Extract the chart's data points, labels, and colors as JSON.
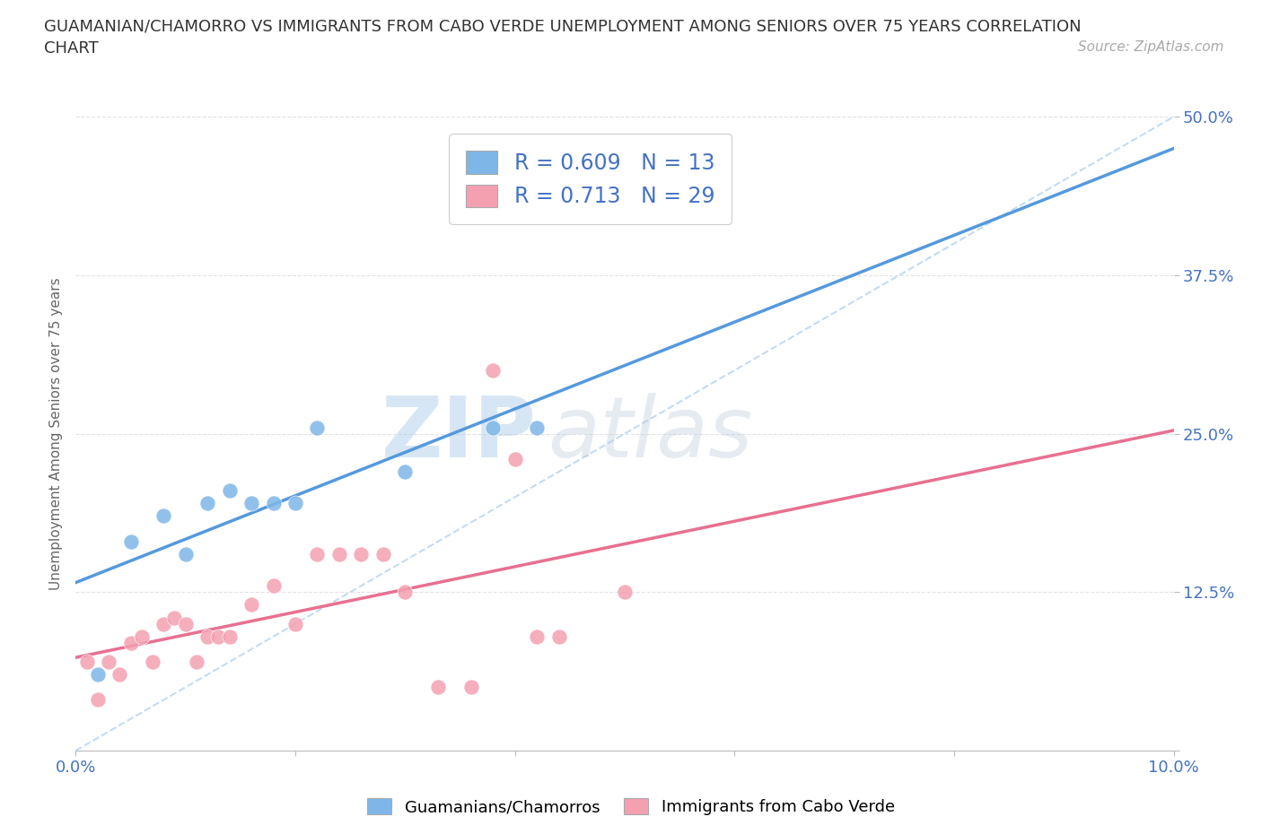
{
  "title_line1": "GUAMANIAN/CHAMORRO VS IMMIGRANTS FROM CABO VERDE UNEMPLOYMENT AMONG SENIORS OVER 75 YEARS CORRELATION",
  "title_line2": "CHART",
  "source": "Source: ZipAtlas.com",
  "ylabel_label": "Unemployment Among Seniors over 75 years",
  "xlim": [
    0.0,
    0.1
  ],
  "ylim": [
    0.0,
    0.5
  ],
  "yticks": [
    0.0,
    0.125,
    0.25,
    0.375,
    0.5
  ],
  "ytick_labels": [
    "",
    "12.5%",
    "25.0%",
    "37.5%",
    "50.0%"
  ],
  "xticks": [
    0.0,
    0.02,
    0.04,
    0.06,
    0.08,
    0.1
  ],
  "xtick_labels": [
    "0.0%",
    "",
    "",
    "",
    "",
    "10.0%"
  ],
  "blue_color": "#7EB6E8",
  "pink_color": "#F4A0B0",
  "blue_line_color": "#5599DD",
  "pink_line_color": "#E87090",
  "diag_color": "#AACCEE",
  "blue_R": 0.609,
  "blue_N": 13,
  "pink_R": 0.713,
  "pink_N": 29,
  "legend_label_blue": "Guamanians/Chamorros",
  "legend_label_pink": "Immigrants from Cabo Verde",
  "watermark_zip": "ZIP",
  "watermark_atlas": "atlas",
  "blue_points_x": [
    0.002,
    0.005,
    0.008,
    0.01,
    0.012,
    0.014,
    0.016,
    0.018,
    0.02,
    0.022,
    0.03,
    0.038,
    0.042
  ],
  "blue_points_y": [
    0.06,
    0.165,
    0.185,
    0.155,
    0.195,
    0.205,
    0.195,
    0.195,
    0.195,
    0.255,
    0.22,
    0.255,
    0.255
  ],
  "pink_points_x": [
    0.001,
    0.002,
    0.003,
    0.004,
    0.005,
    0.006,
    0.007,
    0.008,
    0.009,
    0.01,
    0.011,
    0.012,
    0.013,
    0.014,
    0.016,
    0.018,
    0.02,
    0.022,
    0.024,
    0.026,
    0.028,
    0.03,
    0.033,
    0.036,
    0.038,
    0.04,
    0.042,
    0.044,
    0.05
  ],
  "pink_points_y": [
    0.07,
    0.04,
    0.07,
    0.06,
    0.085,
    0.09,
    0.07,
    0.1,
    0.105,
    0.1,
    0.07,
    0.09,
    0.09,
    0.09,
    0.115,
    0.13,
    0.1,
    0.155,
    0.155,
    0.155,
    0.155,
    0.125,
    0.05,
    0.05,
    0.3,
    0.23,
    0.09,
    0.09,
    0.125
  ],
  "background_color": "#FFFFFF",
  "grid_color": "#E0E0E8",
  "tick_color": "#4472C4",
  "axis_label_color": "#666666",
  "title_color": "#333333"
}
